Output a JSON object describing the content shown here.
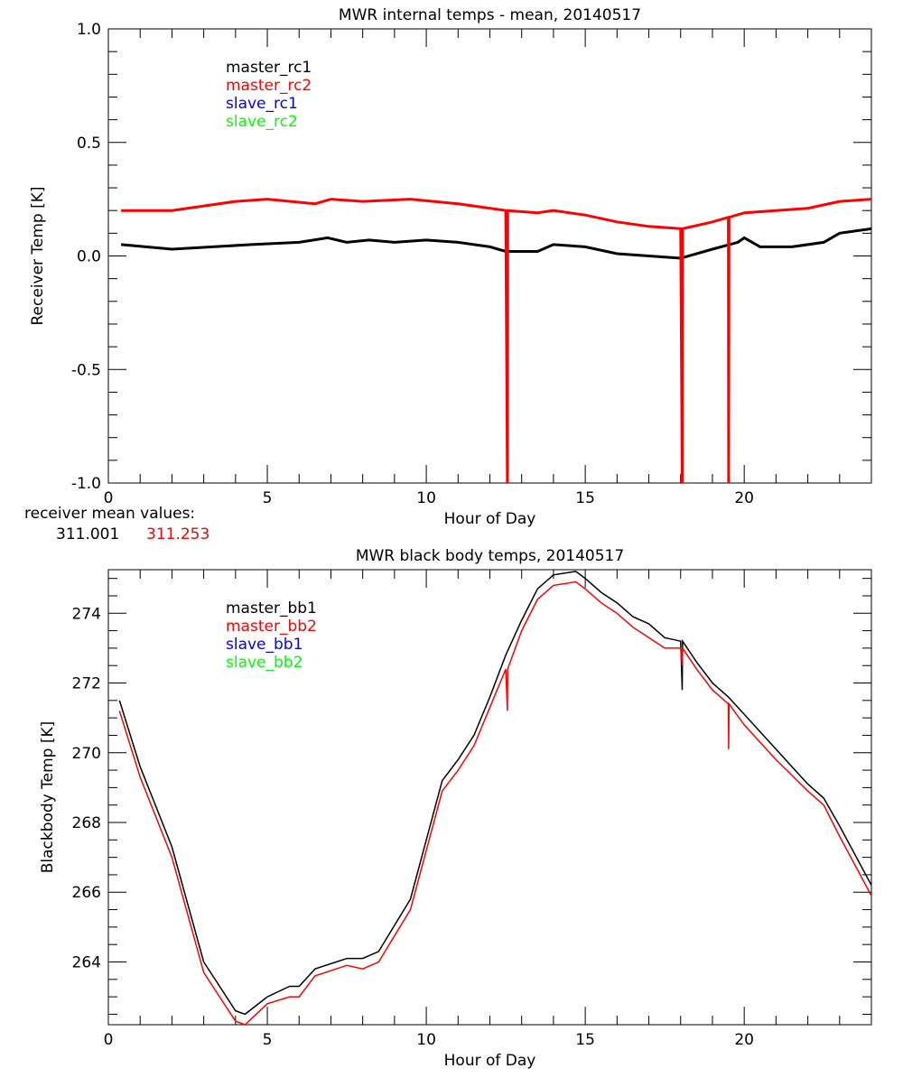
{
  "colors": {
    "master1": "#000000",
    "master2": "#ff0000",
    "slave1": "#0000ff",
    "slave2": "#00ff00"
  },
  "receiver_note": {
    "label": "receiver mean values:",
    "value_master_rc1": "311.001",
    "value_master_rc2": "311.253"
  },
  "chart_data": [
    {
      "type": "line",
      "title": "MWR internal temps - mean, 20140517",
      "xlabel": "Hour of Day",
      "ylabel": "Receiver Temp [K]",
      "xlim": [
        0,
        24
      ],
      "ylim": [
        -1.0,
        1.0
      ],
      "xticks": [
        "0",
        "5",
        "10",
        "15",
        "20"
      ],
      "yticks": [
        "-1.0",
        "-0.5",
        "0.0",
        "0.5",
        "1.0"
      ],
      "legend": [
        "master_rc1",
        "master_rc2",
        "slave_rc1",
        "slave_rc2"
      ],
      "legend_position": "top-left",
      "series": [
        {
          "name": "master_rc1",
          "x": [
            0.4,
            2,
            4.5,
            6,
            6.9,
            7.5,
            8.2,
            9,
            10,
            11,
            12,
            12.5,
            13.5,
            14,
            15,
            16,
            17,
            18,
            19,
            19.8,
            20,
            20.5,
            21.5,
            22.5,
            23,
            24
          ],
          "y": [
            0.05,
            0.03,
            0.05,
            0.06,
            0.08,
            0.06,
            0.07,
            0.06,
            0.07,
            0.06,
            0.04,
            0.02,
            0.02,
            0.05,
            0.04,
            0.01,
            0.0,
            -0.01,
            0.03,
            0.06,
            0.08,
            0.04,
            0.04,
            0.06,
            0.1,
            0.12
          ]
        },
        {
          "name": "master_rc2",
          "x": [
            0.4,
            2,
            4,
            5,
            6.5,
            7,
            8,
            9.5,
            11,
            12.5,
            12.55,
            12.56,
            13.5,
            14,
            15,
            16,
            17,
            18,
            18.05,
            18.06,
            19,
            19.5,
            19.51,
            19.52,
            20,
            21,
            22,
            23,
            24
          ],
          "y": [
            0.2,
            0.2,
            0.24,
            0.25,
            0.23,
            0.25,
            0.24,
            0.25,
            0.23,
            0.2,
            -1.0,
            0.2,
            0.19,
            0.2,
            0.18,
            0.15,
            0.13,
            0.12,
            -1.0,
            0.12,
            0.15,
            0.17,
            -1.0,
            0.17,
            0.19,
            0.2,
            0.21,
            0.24,
            0.25
          ]
        },
        {
          "name": "slave_rc1",
          "x": [],
          "y": []
        },
        {
          "name": "slave_rc2",
          "x": [],
          "y": []
        }
      ]
    },
    {
      "type": "line",
      "title": "MWR black body temps, 20140517",
      "xlabel": "Hour of Day",
      "ylabel": "Blackbody Temp [K]",
      "xlim": [
        0,
        24
      ],
      "ylim": [
        262.2,
        275.25
      ],
      "xticks": [
        "0",
        "5",
        "10",
        "15",
        "20"
      ],
      "yticks": [
        "264",
        "266",
        "268",
        "270",
        "272",
        "274"
      ],
      "legend": [
        "master_bb1",
        "master_bb2",
        "slave_bb1",
        "slave_bb2"
      ],
      "legend_position": "top-left",
      "series": [
        {
          "name": "master_bb1",
          "x": [
            0.35,
            1,
            2,
            3,
            4,
            4.3,
            5,
            5.7,
            6,
            6.5,
            7.5,
            8,
            8.5,
            9.5,
            10.5,
            11,
            11.5,
            12,
            12.5,
            13,
            13.5,
            14,
            14.7,
            15,
            15.5,
            16,
            16.5,
            17,
            17.5,
            18,
            18.05,
            18.06,
            18.5,
            19,
            19.5,
            20,
            21,
            22,
            22.5,
            23,
            24
          ],
          "y": [
            271.5,
            269.6,
            267.3,
            264.0,
            262.6,
            262.5,
            263.0,
            263.3,
            263.3,
            263.8,
            264.1,
            264.1,
            264.3,
            265.8,
            269.2,
            269.8,
            270.5,
            271.6,
            272.8,
            273.8,
            274.7,
            275.1,
            275.2,
            275.0,
            274.6,
            274.3,
            273.9,
            273.7,
            273.3,
            273.2,
            271.8,
            273.2,
            272.6,
            272.0,
            271.6,
            271.1,
            270.1,
            269.1,
            268.7,
            267.9,
            266.2
          ]
        },
        {
          "name": "master_bb2",
          "x": [
            0.35,
            1,
            2,
            3,
            4,
            4.3,
            5,
            5.7,
            6,
            6.5,
            7.5,
            8,
            8.5,
            9.5,
            10.5,
            11,
            11.5,
            12,
            12.5,
            12.55,
            12.56,
            13,
            13.5,
            14,
            14.7,
            15,
            15.5,
            16,
            16.5,
            17,
            17.5,
            18,
            18.05,
            18.06,
            18.5,
            19,
            19.5,
            19.51,
            19.52,
            20,
            21,
            22,
            22.5,
            23,
            24
          ],
          "y": [
            271.2,
            269.3,
            267.0,
            263.7,
            262.3,
            262.2,
            262.8,
            263.0,
            263.0,
            263.6,
            263.9,
            263.8,
            264.0,
            265.5,
            268.9,
            269.5,
            270.2,
            271.3,
            272.4,
            271.2,
            272.4,
            273.5,
            274.4,
            274.8,
            274.9,
            274.7,
            274.3,
            274.0,
            273.6,
            273.3,
            273.0,
            273.0,
            272.5,
            273.0,
            272.4,
            271.8,
            271.4,
            270.1,
            271.4,
            270.8,
            269.8,
            268.9,
            268.5,
            267.6,
            265.9
          ]
        },
        {
          "name": "slave_bb1",
          "x": [],
          "y": []
        },
        {
          "name": "slave_bb2",
          "x": [],
          "y": []
        }
      ]
    }
  ]
}
